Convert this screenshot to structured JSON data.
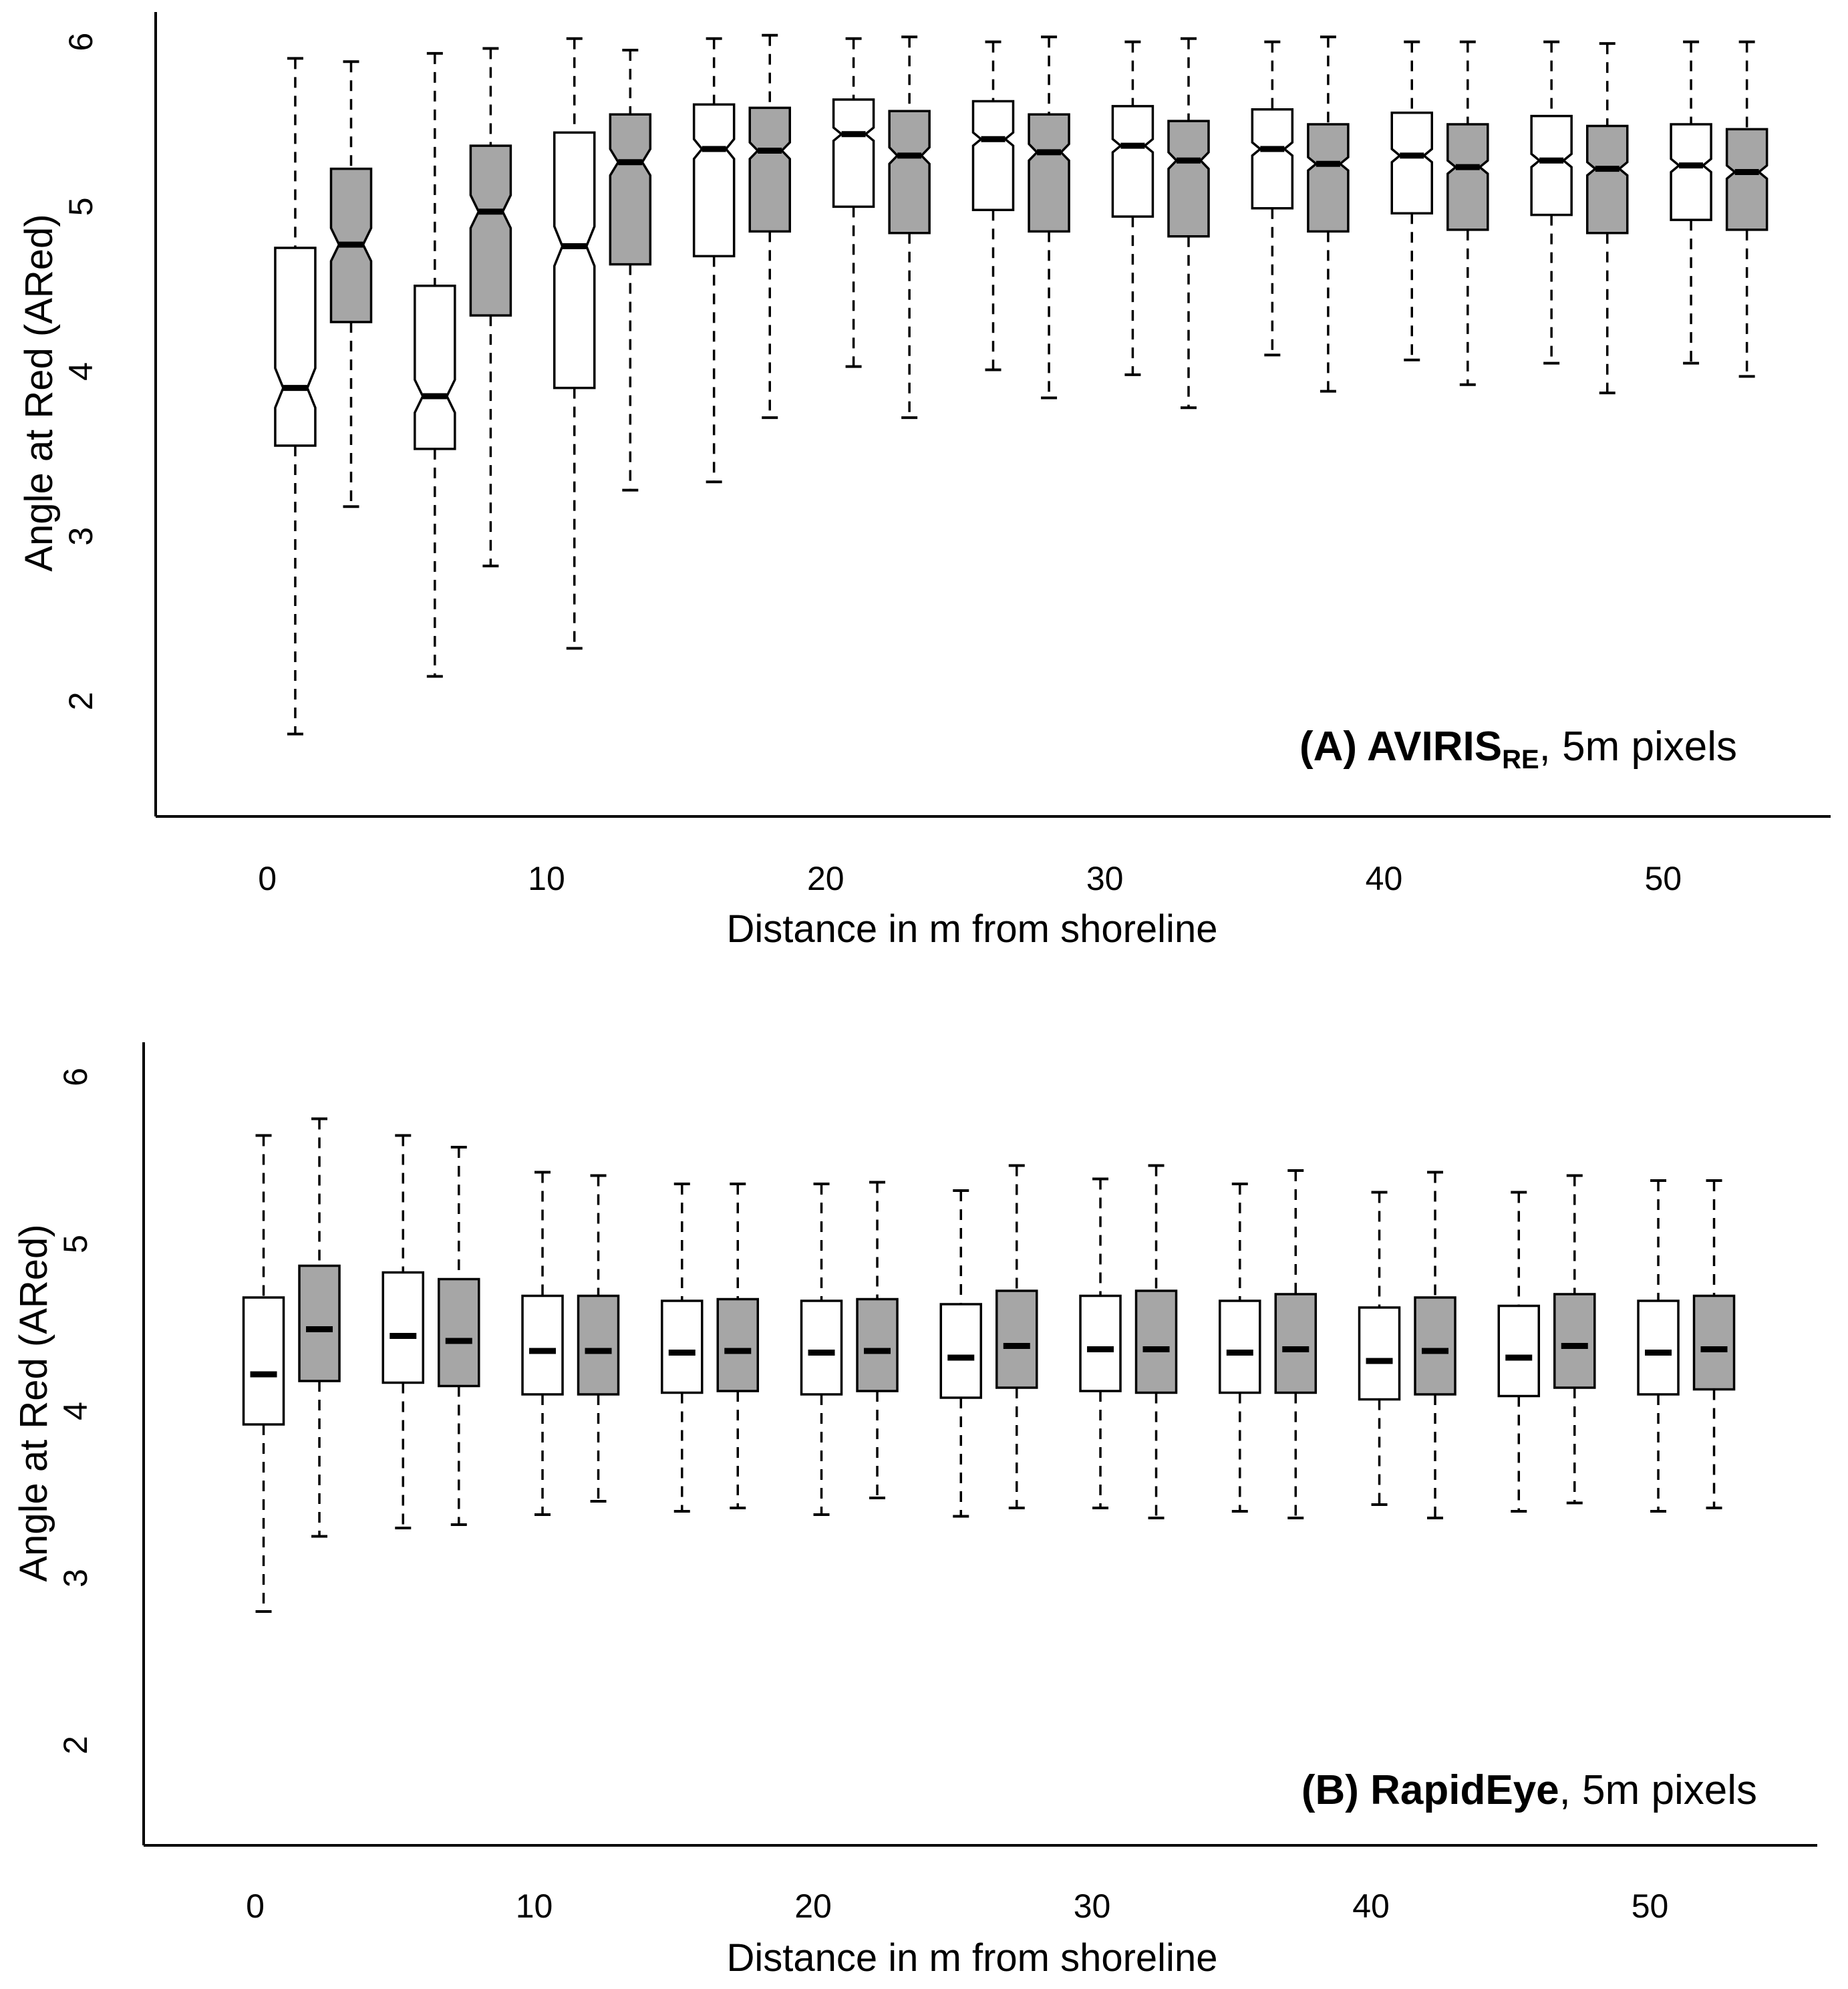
{
  "chart_data": [
    {
      "id": "A",
      "type": "boxplot",
      "x_label": "Distance in m from shoreline",
      "y_label": "Angle at Red (ARed)",
      "annotation": {
        "bold": "(A) AVIRIS",
        "subscript": "RE",
        "rest": ", 5m pixels"
      },
      "ylim": [
        1.3,
        6.1
      ],
      "yticks": [
        2,
        3,
        4,
        5,
        6
      ],
      "xticks": [
        0,
        10,
        20,
        30,
        40,
        50
      ],
      "xlim": [
        -4,
        56
      ],
      "colors": {
        "series_1_fill": "#ffffff",
        "series_2_fill": "#a6a6a6",
        "stroke": "#000000"
      },
      "groups": [
        {
          "x": 1,
          "fill": "white",
          "whisker_low": 1.8,
          "q1": 3.55,
          "median": 3.9,
          "q3": 4.75,
          "whisker_high": 5.9,
          "notch": 0.12
        },
        {
          "x": 3,
          "fill": "gray",
          "whisker_low": 3.18,
          "q1": 4.3,
          "median": 4.77,
          "q3": 5.23,
          "whisker_high": 5.88,
          "notch": 0.1
        },
        {
          "x": 6,
          "fill": "white",
          "whisker_low": 2.15,
          "q1": 3.53,
          "median": 3.85,
          "q3": 4.52,
          "whisker_high": 5.93,
          "notch": 0.1
        },
        {
          "x": 8,
          "fill": "gray",
          "whisker_low": 2.82,
          "q1": 4.34,
          "median": 4.97,
          "q3": 5.37,
          "whisker_high": 5.96,
          "notch": 0.1
        },
        {
          "x": 11,
          "fill": "white",
          "whisker_low": 2.32,
          "q1": 3.9,
          "median": 4.76,
          "q3": 5.45,
          "whisker_high": 6.02,
          "notch": 0.12
        },
        {
          "x": 13,
          "fill": "gray",
          "whisker_low": 3.28,
          "q1": 4.65,
          "median": 5.27,
          "q3": 5.56,
          "whisker_high": 5.95,
          "notch": 0.08
        },
        {
          "x": 16,
          "fill": "white",
          "whisker_low": 3.33,
          "q1": 4.7,
          "median": 5.35,
          "q3": 5.62,
          "whisker_high": 6.02,
          "notch": 0.06
        },
        {
          "x": 18,
          "fill": "gray",
          "whisker_low": 3.72,
          "q1": 4.85,
          "median": 5.34,
          "q3": 5.6,
          "whisker_high": 6.04,
          "notch": 0.05
        },
        {
          "x": 21,
          "fill": "white",
          "whisker_low": 4.03,
          "q1": 5.0,
          "median": 5.44,
          "q3": 5.65,
          "whisker_high": 6.02,
          "notch": 0.04
        },
        {
          "x": 23,
          "fill": "gray",
          "whisker_low": 3.72,
          "q1": 4.84,
          "median": 5.31,
          "q3": 5.58,
          "whisker_high": 6.03,
          "notch": 0.05
        },
        {
          "x": 26,
          "fill": "white",
          "whisker_low": 4.01,
          "q1": 4.98,
          "median": 5.41,
          "q3": 5.64,
          "whisker_high": 6.0,
          "notch": 0.04
        },
        {
          "x": 28,
          "fill": "gray",
          "whisker_low": 3.84,
          "q1": 4.85,
          "median": 5.33,
          "q3": 5.56,
          "whisker_high": 6.03,
          "notch": 0.05
        },
        {
          "x": 31,
          "fill": "white",
          "whisker_low": 3.98,
          "q1": 4.94,
          "median": 5.37,
          "q3": 5.61,
          "whisker_high": 6.0,
          "notch": 0.04
        },
        {
          "x": 33,
          "fill": "gray",
          "whisker_low": 3.78,
          "q1": 4.82,
          "median": 5.28,
          "q3": 5.52,
          "whisker_high": 6.02,
          "notch": 0.05
        },
        {
          "x": 36,
          "fill": "white",
          "whisker_low": 4.1,
          "q1": 4.99,
          "median": 5.35,
          "q3": 5.59,
          "whisker_high": 6.0,
          "notch": 0.04
        },
        {
          "x": 38,
          "fill": "gray",
          "whisker_low": 3.88,
          "q1": 4.85,
          "median": 5.26,
          "q3": 5.5,
          "whisker_high": 6.03,
          "notch": 0.04
        },
        {
          "x": 41,
          "fill": "white",
          "whisker_low": 4.07,
          "q1": 4.96,
          "median": 5.31,
          "q3": 5.57,
          "whisker_high": 6.0,
          "notch": 0.04
        },
        {
          "x": 43,
          "fill": "gray",
          "whisker_low": 3.92,
          "q1": 4.86,
          "median": 5.24,
          "q3": 5.5,
          "whisker_high": 6.0,
          "notch": 0.04
        },
        {
          "x": 46,
          "fill": "white",
          "whisker_low": 4.05,
          "q1": 4.95,
          "median": 5.28,
          "q3": 5.55,
          "whisker_high": 6.0,
          "notch": 0.04
        },
        {
          "x": 48,
          "fill": "gray",
          "whisker_low": 3.87,
          "q1": 4.84,
          "median": 5.23,
          "q3": 5.49,
          "whisker_high": 5.99,
          "notch": 0.04
        },
        {
          "x": 51,
          "fill": "white",
          "whisker_low": 4.05,
          "q1": 4.92,
          "median": 5.25,
          "q3": 5.5,
          "whisker_high": 6.0,
          "notch": 0.04
        },
        {
          "x": 53,
          "fill": "gray",
          "whisker_low": 3.97,
          "q1": 4.86,
          "median": 5.21,
          "q3": 5.47,
          "whisker_high": 6.0,
          "notch": 0.04
        }
      ]
    },
    {
      "id": "B",
      "type": "boxplot",
      "x_label": "Distance in m from shoreline",
      "y_label": "Angle at Red (ARed)",
      "annotation": {
        "bold": "(B) RapidEye",
        "subscript": "",
        "rest": ", 5m pixels"
      },
      "ylim": [
        1.4,
        6.2
      ],
      "yticks": [
        2,
        3,
        4,
        5,
        6
      ],
      "xticks": [
        0,
        10,
        20,
        30,
        40,
        50
      ],
      "xlim": [
        -4,
        56
      ],
      "colors": {
        "series_1_fill": "#ffffff",
        "series_2_fill": "#a6a6a6",
        "stroke": "#000000"
      },
      "groups": [
        {
          "x": 0.3,
          "fill": "white",
          "whisker_low": 2.8,
          "q1": 3.92,
          "median": 4.22,
          "q3": 4.68,
          "whisker_high": 5.65,
          "notch": 0
        },
        {
          "x": 2.3,
          "fill": "gray",
          "whisker_low": 3.25,
          "q1": 4.18,
          "median": 4.49,
          "q3": 4.87,
          "whisker_high": 5.75,
          "notch": 0
        },
        {
          "x": 5.3,
          "fill": "white",
          "whisker_low": 3.3,
          "q1": 4.17,
          "median": 4.45,
          "q3": 4.83,
          "whisker_high": 5.65,
          "notch": 0
        },
        {
          "x": 7.3,
          "fill": "gray",
          "whisker_low": 3.32,
          "q1": 4.15,
          "median": 4.42,
          "q3": 4.79,
          "whisker_high": 5.58,
          "notch": 0
        },
        {
          "x": 10.3,
          "fill": "white",
          "whisker_low": 3.38,
          "q1": 4.1,
          "median": 4.36,
          "q3": 4.69,
          "whisker_high": 5.43,
          "notch": 0
        },
        {
          "x": 12.3,
          "fill": "gray",
          "whisker_low": 3.46,
          "q1": 4.1,
          "median": 4.36,
          "q3": 4.69,
          "whisker_high": 5.41,
          "notch": 0
        },
        {
          "x": 15.3,
          "fill": "white",
          "whisker_low": 3.4,
          "q1": 4.11,
          "median": 4.35,
          "q3": 4.66,
          "whisker_high": 5.36,
          "notch": 0
        },
        {
          "x": 17.3,
          "fill": "gray",
          "whisker_low": 3.42,
          "q1": 4.12,
          "median": 4.36,
          "q3": 4.67,
          "whisker_high": 5.36,
          "notch": 0
        },
        {
          "x": 20.3,
          "fill": "white",
          "whisker_low": 3.38,
          "q1": 4.1,
          "median": 4.35,
          "q3": 4.66,
          "whisker_high": 5.36,
          "notch": 0
        },
        {
          "x": 22.3,
          "fill": "gray",
          "whisker_low": 3.48,
          "q1": 4.12,
          "median": 4.36,
          "q3": 4.67,
          "whisker_high": 5.37,
          "notch": 0
        },
        {
          "x": 25.3,
          "fill": "white",
          "whisker_low": 3.37,
          "q1": 4.08,
          "median": 4.32,
          "q3": 4.64,
          "whisker_high": 5.32,
          "notch": 0
        },
        {
          "x": 27.3,
          "fill": "gray",
          "whisker_low": 3.42,
          "q1": 4.14,
          "median": 4.39,
          "q3": 4.72,
          "whisker_high": 5.47,
          "notch": 0
        },
        {
          "x": 30.3,
          "fill": "white",
          "whisker_low": 3.42,
          "q1": 4.12,
          "median": 4.37,
          "q3": 4.69,
          "whisker_high": 5.39,
          "notch": 0
        },
        {
          "x": 32.3,
          "fill": "gray",
          "whisker_low": 3.36,
          "q1": 4.11,
          "median": 4.37,
          "q3": 4.72,
          "whisker_high": 5.47,
          "notch": 0
        },
        {
          "x": 35.3,
          "fill": "white",
          "whisker_low": 3.4,
          "q1": 4.11,
          "median": 4.35,
          "q3": 4.66,
          "whisker_high": 5.36,
          "notch": 0
        },
        {
          "x": 37.3,
          "fill": "gray",
          "whisker_low": 3.36,
          "q1": 4.11,
          "median": 4.37,
          "q3": 4.7,
          "whisker_high": 5.44,
          "notch": 0
        },
        {
          "x": 40.3,
          "fill": "white",
          "whisker_low": 3.44,
          "q1": 4.07,
          "median": 4.3,
          "q3": 4.62,
          "whisker_high": 5.31,
          "notch": 0
        },
        {
          "x": 42.3,
          "fill": "gray",
          "whisker_low": 3.36,
          "q1": 4.1,
          "median": 4.36,
          "q3": 4.68,
          "whisker_high": 5.43,
          "notch": 0
        },
        {
          "x": 45.3,
          "fill": "white",
          "whisker_low": 3.4,
          "q1": 4.09,
          "median": 4.32,
          "q3": 4.63,
          "whisker_high": 5.31,
          "notch": 0
        },
        {
          "x": 47.3,
          "fill": "gray",
          "whisker_low": 3.45,
          "q1": 4.14,
          "median": 4.39,
          "q3": 4.7,
          "whisker_high": 5.41,
          "notch": 0
        },
        {
          "x": 50.3,
          "fill": "white",
          "whisker_low": 3.4,
          "q1": 4.1,
          "median": 4.35,
          "q3": 4.66,
          "whisker_high": 5.38,
          "notch": 0
        },
        {
          "x": 52.3,
          "fill": "gray",
          "whisker_low": 3.42,
          "q1": 4.13,
          "median": 4.37,
          "q3": 4.69,
          "whisker_high": 5.38,
          "notch": 0
        }
      ]
    }
  ]
}
